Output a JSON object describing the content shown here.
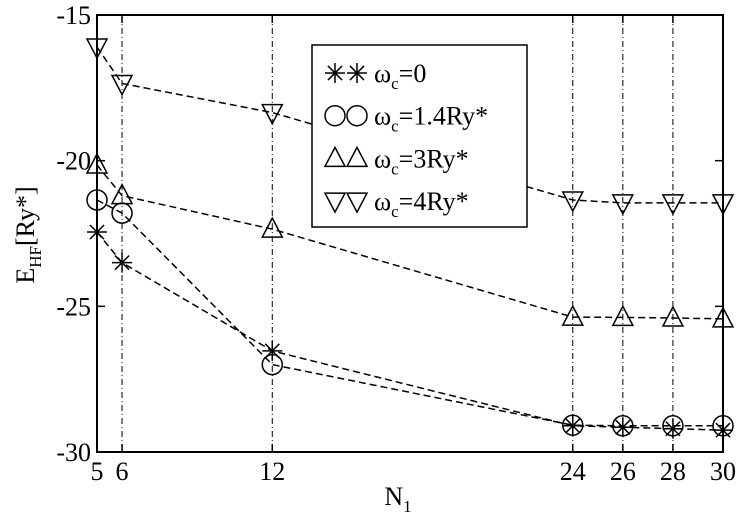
{
  "chart_data": {
    "type": "line",
    "xlabel": {
      "main": "N",
      "sub": "1"
    },
    "ylabel": {
      "main": "E",
      "sub": "HF",
      "rest": "[Ry*]"
    },
    "xlim": [
      5,
      30
    ],
    "xticks": [
      5,
      6,
      12,
      24,
      26,
      28,
      30
    ],
    "ylim": [
      -30,
      -15
    ],
    "yticks": [
      -30,
      -25,
      -20,
      -15
    ],
    "grid": true,
    "legend": "upper-right",
    "x": [
      5,
      6,
      12,
      24,
      26,
      28,
      30
    ],
    "series": [
      {
        "name": {
          "main": "ω",
          "sub": "c",
          "rest": "=0"
        },
        "marker": "asterisk",
        "color": "#000000",
        "values": [
          -22.45,
          -23.5,
          -26.53,
          -29.1,
          -29.15,
          -29.2,
          -29.25
        ]
      },
      {
        "name": {
          "main": "ω",
          "sub": "c",
          "rest": "=1.4Ry*"
        },
        "marker": "circle",
        "color": "#000000",
        "values": [
          -21.35,
          -21.8,
          -27.0,
          -29.08,
          -29.1,
          -29.1,
          -29.1
        ]
      },
      {
        "name": {
          "main": "ω",
          "sub": "c",
          "rest": "=3Ry*"
        },
        "marker": "triangle-up",
        "color": "#000000",
        "values": [
          -20.15,
          -21.2,
          -22.35,
          -25.37,
          -25.38,
          -25.4,
          -25.43
        ]
      },
      {
        "name": {
          "main": "ω",
          "sub": "c",
          "rest": "=4Ry*"
        },
        "marker": "triangle-down",
        "color": "#000000",
        "values": [
          -16.1,
          -17.35,
          -18.35,
          -21.35,
          -21.45,
          -21.45,
          -21.45
        ]
      }
    ]
  }
}
